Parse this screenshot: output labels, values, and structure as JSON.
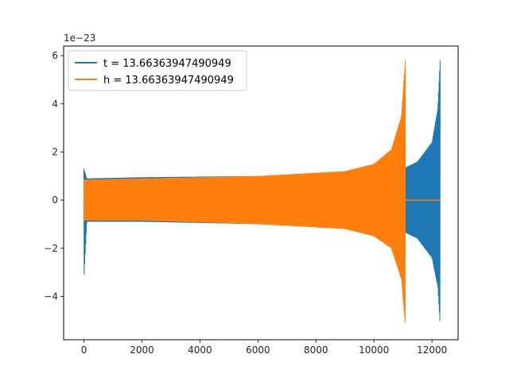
{
  "chart_data": {
    "type": "line",
    "title": "",
    "xlabel": "",
    "ylabel": "",
    "y_offset_label": "1e−23",
    "xlim": [
      -700,
      12900
    ],
    "ylim": [
      -5.8,
      6.4
    ],
    "x_ticks": [
      0,
      2000,
      4000,
      6000,
      8000,
      10000,
      12000
    ],
    "x_tick_labels": [
      "0",
      "2000",
      "4000",
      "6000",
      "8000",
      "10000",
      "12000"
    ],
    "y_ticks": [
      -4,
      -2,
      0,
      2,
      4,
      6
    ],
    "y_tick_labels": [
      "−4",
      "−2",
      "0",
      "2",
      "4",
      "6"
    ],
    "grid": false,
    "legend": {
      "position": "top-left"
    },
    "series": [
      {
        "name": "t = 13.66363947490949",
        "color": "#1f77b4",
        "description": "chirp-like oscillation (units of 1e-23)",
        "envelope": [
          {
            "x": 0,
            "lower": -3.3,
            "upper": 1.3
          },
          {
            "x": 100,
            "lower": -0.9,
            "upper": 0.9
          },
          {
            "x": 2000,
            "lower": -0.9,
            "upper": 0.95
          },
          {
            "x": 6000,
            "lower": -1.0,
            "upper": 1.0
          },
          {
            "x": 10000,
            "lower": -1.1,
            "upper": 1.1
          },
          {
            "x": 11000,
            "lower": -1.3,
            "upper": 1.3
          },
          {
            "x": 11500,
            "lower": -1.6,
            "upper": 1.6
          },
          {
            "x": 12000,
            "lower": -2.4,
            "upper": 2.4
          },
          {
            "x": 12200,
            "lower": -3.6,
            "upper": 3.8
          },
          {
            "x": 12280,
            "lower": -5.2,
            "upper": 5.8
          }
        ]
      },
      {
        "name": "h = 13.66363947490949",
        "color": "#ff7f0e",
        "description": "chirp-like oscillation (units of 1e-23)",
        "envelope": [
          {
            "x": 0,
            "lower": -0.85,
            "upper": 0.85
          },
          {
            "x": 2000,
            "lower": -0.85,
            "upper": 0.9
          },
          {
            "x": 6000,
            "lower": -1.0,
            "upper": 1.0
          },
          {
            "x": 9000,
            "lower": -1.2,
            "upper": 1.2
          },
          {
            "x": 10000,
            "lower": -1.5,
            "upper": 1.5
          },
          {
            "x": 10600,
            "lower": -2.0,
            "upper": 2.1
          },
          {
            "x": 10950,
            "lower": -3.3,
            "upper": 3.5
          },
          {
            "x": 11080,
            "lower": -5.2,
            "upper": 5.8
          }
        ],
        "tail": {
          "x_start": 11080,
          "x_end": 12280,
          "value": 0
        }
      }
    ]
  }
}
